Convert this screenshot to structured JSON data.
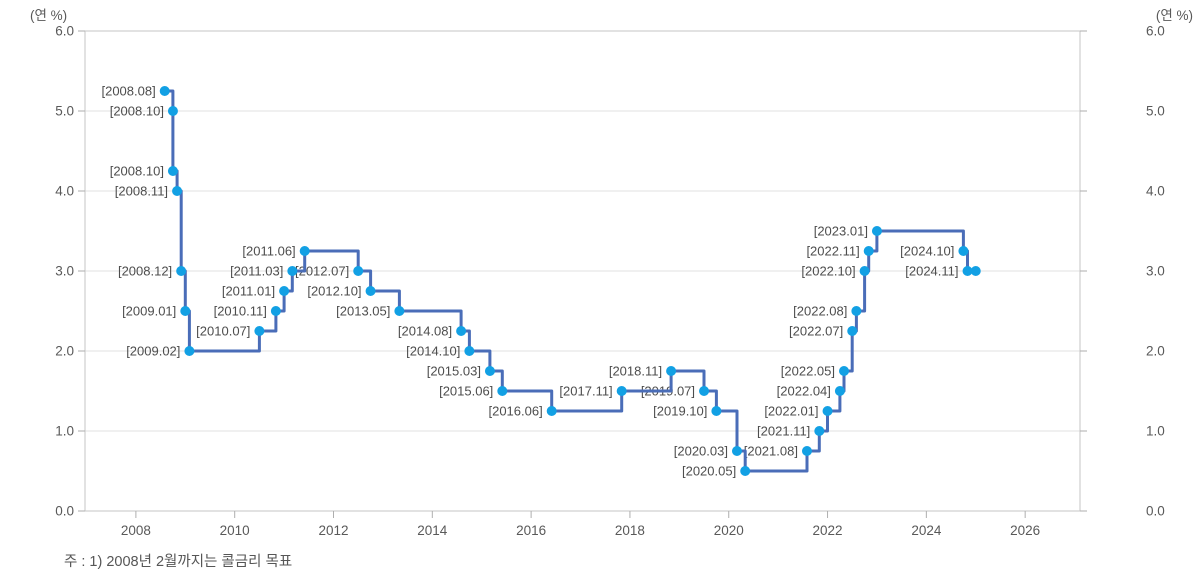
{
  "chart_data": {
    "type": "line",
    "step": "after",
    "title": "",
    "unit_label_left": "(연 %)",
    "unit_label_right": "(연 %)",
    "footnote": "주 : 1) 2008년 2월까지는 콜금리 목표",
    "legend_position": "none",
    "grid": "horizontal-only",
    "x_range": [
      2006.97,
      2027.11
    ],
    "y_range": [
      0,
      6
    ],
    "x_ticks": [
      2008,
      2010,
      2012,
      2014,
      2016,
      2018,
      2020,
      2022,
      2024,
      2026
    ],
    "y_ticks": [
      0.0,
      1.0,
      2.0,
      3.0,
      4.0,
      5.0,
      6.0
    ],
    "y_tick_decimals": 1,
    "points": [
      {
        "label": "[2008.08]",
        "year": 2008,
        "month": 8,
        "rate": 5.25
      },
      {
        "label": "[2008.10]",
        "year": 2008,
        "month": 10,
        "rate": 5.0
      },
      {
        "label": "[2008.10]",
        "year": 2008,
        "month": 10,
        "rate": 4.25
      },
      {
        "label": "[2008.11]",
        "year": 2008,
        "month": 11,
        "rate": 4.0
      },
      {
        "label": "[2008.12]",
        "year": 2008,
        "month": 12,
        "rate": 3.0
      },
      {
        "label": "[2009.01]",
        "year": 2009,
        "month": 1,
        "rate": 2.5
      },
      {
        "label": "[2009.02]",
        "year": 2009,
        "month": 2,
        "rate": 2.0
      },
      {
        "label": "[2010.07]",
        "year": 2010,
        "month": 7,
        "rate": 2.25
      },
      {
        "label": "[2010.11]",
        "year": 2010,
        "month": 11,
        "rate": 2.5
      },
      {
        "label": "[2011.01]",
        "year": 2011,
        "month": 1,
        "rate": 2.75
      },
      {
        "label": "[2011.03]",
        "year": 2011,
        "month": 3,
        "rate": 3.0
      },
      {
        "label": "[2011.06]",
        "year": 2011,
        "month": 6,
        "rate": 3.25
      },
      {
        "label": "[2012.07]",
        "year": 2012,
        "month": 7,
        "rate": 3.0
      },
      {
        "label": "[2012.10]",
        "year": 2012,
        "month": 10,
        "rate": 2.75
      },
      {
        "label": "[2013.05]",
        "year": 2013,
        "month": 5,
        "rate": 2.5
      },
      {
        "label": "[2014.08]",
        "year": 2014,
        "month": 8,
        "rate": 2.25
      },
      {
        "label": "[2014.10]",
        "year": 2014,
        "month": 10,
        "rate": 2.0
      },
      {
        "label": "[2015.03]",
        "year": 2015,
        "month": 3,
        "rate": 1.75
      },
      {
        "label": "[2015.06]",
        "year": 2015,
        "month": 6,
        "rate": 1.5
      },
      {
        "label": "[2016.06]",
        "year": 2016,
        "month": 6,
        "rate": 1.25
      },
      {
        "label": "[2017.11]",
        "year": 2017,
        "month": 11,
        "rate": 1.5
      },
      {
        "label": "[2018.11]",
        "year": 2018,
        "month": 11,
        "rate": 1.75
      },
      {
        "label": "[2019.07]",
        "year": 2019,
        "month": 7,
        "rate": 1.5
      },
      {
        "label": "[2019.10]",
        "year": 2019,
        "month": 10,
        "rate": 1.25
      },
      {
        "label": "[2020.03]",
        "year": 2020,
        "month": 3,
        "rate": 0.75
      },
      {
        "label": "[2020.05]",
        "year": 2020,
        "month": 5,
        "rate": 0.5
      },
      {
        "label": "[2021.08]",
        "year": 2021,
        "month": 8,
        "rate": 0.75
      },
      {
        "label": "[2021.11]",
        "year": 2021,
        "month": 11,
        "rate": 1.0
      },
      {
        "label": "[2022.01]",
        "year": 2022,
        "month": 1,
        "rate": 1.25
      },
      {
        "label": "[2022.04]",
        "year": 2022,
        "month": 4,
        "rate": 1.5
      },
      {
        "label": "[2022.05]",
        "year": 2022,
        "month": 5,
        "rate": 1.75
      },
      {
        "label": "[2022.07]",
        "year": 2022,
        "month": 7,
        "rate": 2.25
      },
      {
        "label": "[2022.08]",
        "year": 2022,
        "month": 8,
        "rate": 2.5
      },
      {
        "label": "[2022.10]",
        "year": 2022,
        "month": 10,
        "rate": 3.0
      },
      {
        "label": "[2022.11]",
        "year": 2022,
        "month": 11,
        "rate": 3.25
      },
      {
        "label": "[2023.01]",
        "year": 2023,
        "month": 1,
        "rate": 3.5
      },
      {
        "label": "[2024.10]",
        "year": 2024,
        "month": 10,
        "rate": 3.25
      },
      {
        "label": "[2024.11]",
        "year": 2024,
        "month": 11,
        "rate": 3.0
      }
    ],
    "line_end": {
      "year": 2025,
      "month": 1,
      "rate": 3.0
    },
    "colors": {
      "line": "#4a6db8",
      "marker": "#12a0e4",
      "grid": "#e2e2e2",
      "frame": "#c6c6c6",
      "tick": "#aeaeae",
      "tick_text": "#595959",
      "point_label_text": "#4d4d4d"
    }
  }
}
